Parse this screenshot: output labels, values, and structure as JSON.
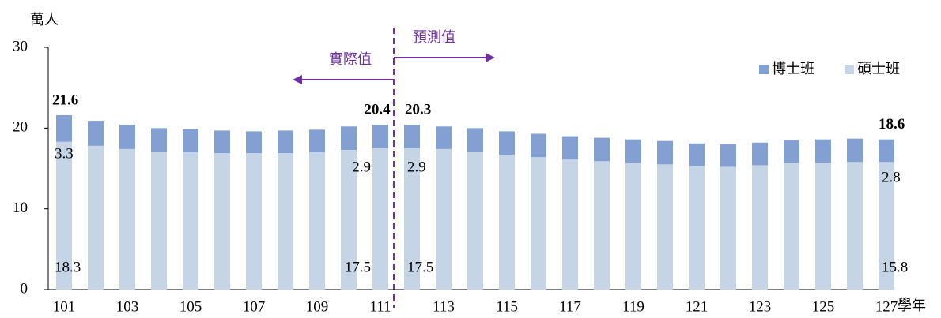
{
  "chart_data": {
    "type": "stacked_bar",
    "y_label": "萬人",
    "x_label": "學年",
    "categories": [
      "101",
      null,
      "103",
      null,
      "105",
      null,
      "107",
      null,
      "109",
      null,
      "111",
      null,
      "113",
      null,
      "115",
      null,
      "117",
      null,
      "119",
      null,
      "121",
      null,
      "123",
      null,
      "125",
      null,
      "127"
    ],
    "series": [
      {
        "name": "碩士班",
        "color": "#c5d5e6",
        "values": [
          18.3,
          17.8,
          17.4,
          17.1,
          17.0,
          16.9,
          16.9,
          16.9,
          17.0,
          17.3,
          17.5,
          17.5,
          17.4,
          17.1,
          16.7,
          16.4,
          16.1,
          15.9,
          15.7,
          15.5,
          15.3,
          15.2,
          15.4,
          15.7,
          15.7,
          15.8,
          15.8
        ],
        "value_labels": [
          "18.3",
          null,
          null,
          null,
          null,
          null,
          null,
          null,
          null,
          null,
          "17.5",
          "17.5",
          null,
          null,
          null,
          null,
          null,
          null,
          null,
          null,
          null,
          null,
          null,
          null,
          null,
          null,
          "15.8"
        ]
      },
      {
        "name": "博士班",
        "color": "#849fd2",
        "values": [
          3.3,
          3.1,
          3.0,
          2.9,
          2.9,
          2.8,
          2.7,
          2.8,
          2.8,
          2.9,
          2.9,
          2.9,
          2.8,
          2.9,
          2.9,
          2.9,
          2.9,
          2.9,
          2.9,
          2.9,
          2.8,
          2.8,
          2.8,
          2.8,
          2.9,
          2.9,
          2.8
        ],
        "value_labels": [
          "3.3",
          null,
          null,
          null,
          null,
          null,
          null,
          null,
          null,
          null,
          "2.9",
          "2.9",
          null,
          null,
          null,
          null,
          null,
          null,
          null,
          null,
          null,
          null,
          null,
          null,
          null,
          null,
          "2.8"
        ]
      }
    ],
    "total_labels": [
      "21.6",
      null,
      null,
      null,
      null,
      null,
      null,
      null,
      null,
      null,
      "20.4",
      "20.3",
      null,
      null,
      null,
      null,
      null,
      null,
      null,
      null,
      null,
      null,
      null,
      null,
      null,
      null,
      "18.6"
    ],
    "annotations": [
      "實際值",
      "預測值"
    ],
    "ylim": [
      0,
      30
    ],
    "yticks": [
      0,
      10,
      20,
      30
    ],
    "legend": "top-right",
    "grid": false
  }
}
